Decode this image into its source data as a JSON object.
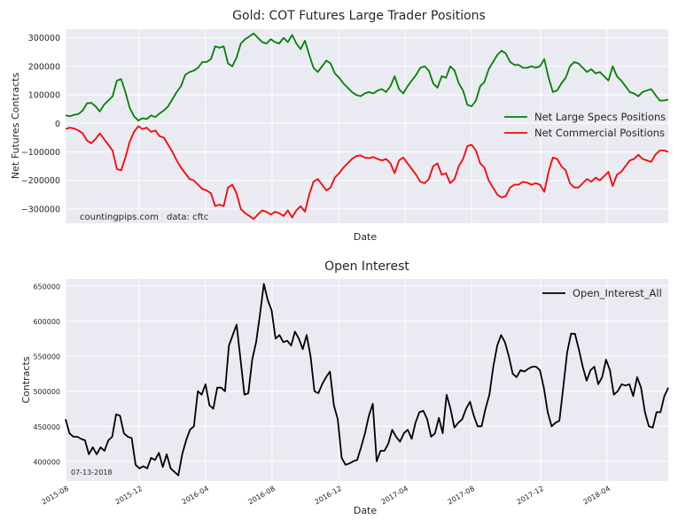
{
  "chart_data": [
    {
      "type": "line",
      "title": "Gold: COT Futures Large Trader Positions",
      "xlabel": "Date",
      "ylabel": "Net Futures Contracts",
      "ylim": [
        -350000,
        330000
      ],
      "yticks": [
        -300000,
        -200000,
        -100000,
        0,
        100000,
        200000,
        300000
      ],
      "ytick_labels": [
        "−300000",
        "−200000",
        "−100000",
        "0",
        "100000",
        "200000",
        "300000"
      ],
      "grid": true,
      "legend_position": "right",
      "annotations": [
        "countingpips.com",
        "data: cftc"
      ],
      "series": [
        {
          "name": "Net Large Specs Positions",
          "color": "#008000",
          "values": [
            28000,
            25000,
            30000,
            33000,
            45000,
            70000,
            72000,
            60000,
            42000,
            65000,
            80000,
            95000,
            150000,
            155000,
            110000,
            55000,
            25000,
            10000,
            18000,
            15000,
            28000,
            22000,
            35000,
            45000,
            60000,
            85000,
            110000,
            130000,
            170000,
            180000,
            185000,
            195000,
            215000,
            215000,
            225000,
            270000,
            265000,
            270000,
            210000,
            200000,
            230000,
            280000,
            295000,
            305000,
            315000,
            300000,
            285000,
            280000,
            295000,
            285000,
            280000,
            300000,
            285000,
            310000,
            280000,
            260000,
            290000,
            240000,
            195000,
            180000,
            200000,
            220000,
            210000,
            175000,
            160000,
            140000,
            125000,
            110000,
            100000,
            95000,
            105000,
            110000,
            105000,
            115000,
            120000,
            110000,
            130000,
            165000,
            120000,
            105000,
            130000,
            150000,
            170000,
            195000,
            200000,
            185000,
            140000,
            125000,
            165000,
            160000,
            200000,
            185000,
            140000,
            115000,
            65000,
            60000,
            80000,
            130000,
            145000,
            190000,
            215000,
            240000,
            255000,
            245000,
            215000,
            205000,
            205000,
            195000,
            195000,
            200000,
            195000,
            200000,
            225000,
            160000,
            110000,
            115000,
            140000,
            160000,
            200000,
            215000,
            210000,
            195000,
            180000,
            190000,
            175000,
            180000,
            165000,
            150000,
            200000,
            165000,
            150000,
            130000,
            110000,
            105000,
            95000,
            110000,
            115000,
            120000,
            100000,
            80000,
            80000,
            83000
          ]
        },
        {
          "name": "Net Commercial Positions",
          "color": "#ff0000",
          "values": [
            -20000,
            -15000,
            -18000,
            -25000,
            -35000,
            -60000,
            -70000,
            -55000,
            -35000,
            -55000,
            -75000,
            -95000,
            -160000,
            -165000,
            -120000,
            -65000,
            -30000,
            -10000,
            -20000,
            -15000,
            -30000,
            -25000,
            -45000,
            -50000,
            -75000,
            -100000,
            -130000,
            -155000,
            -175000,
            -195000,
            -200000,
            -215000,
            -230000,
            -235000,
            -245000,
            -290000,
            -285000,
            -290000,
            -225000,
            -215000,
            -245000,
            -300000,
            -315000,
            -325000,
            -335000,
            -320000,
            -305000,
            -310000,
            -320000,
            -310000,
            -315000,
            -325000,
            -305000,
            -330000,
            -305000,
            -290000,
            -310000,
            -250000,
            -205000,
            -195000,
            -215000,
            -235000,
            -225000,
            -190000,
            -175000,
            -155000,
            -140000,
            -125000,
            -115000,
            -112000,
            -120000,
            -122000,
            -118000,
            -125000,
            -130000,
            -125000,
            -140000,
            -175000,
            -130000,
            -120000,
            -140000,
            -160000,
            -180000,
            -205000,
            -210000,
            -195000,
            -150000,
            -140000,
            -180000,
            -175000,
            -210000,
            -195000,
            -150000,
            -125000,
            -80000,
            -75000,
            -95000,
            -140000,
            -155000,
            -200000,
            -225000,
            -250000,
            -260000,
            -255000,
            -225000,
            -215000,
            -215000,
            -205000,
            -208000,
            -215000,
            -210000,
            -215000,
            -240000,
            -170000,
            -120000,
            -125000,
            -150000,
            -165000,
            -210000,
            -225000,
            -225000,
            -210000,
            -195000,
            -205000,
            -190000,
            -200000,
            -185000,
            -170000,
            -220000,
            -180000,
            -170000,
            -150000,
            -130000,
            -125000,
            -110000,
            -125000,
            -130000,
            -135000,
            -110000,
            -95000,
            -95000,
            -100000
          ]
        }
      ]
    },
    {
      "type": "line",
      "title": "Open Interest",
      "xlabel": "Date",
      "ylabel": "Contracts",
      "ylim": [
        372000,
        660000
      ],
      "yticks": [
        400000,
        450000,
        500000,
        550000,
        600000,
        650000
      ],
      "ytick_labels": [
        "400000",
        "450000",
        "500000",
        "550000",
        "600000",
        "650000"
      ],
      "x_tick_labels": [
        "2015-08",
        "2015-12",
        "2016-04",
        "2016-08",
        "2016-12",
        "2017-04",
        "2017-08",
        "2017-12",
        "2018-04"
      ],
      "grid": true,
      "legend_position": "top-right",
      "annotations": [
        "07-13-2018"
      ],
      "series": [
        {
          "name": "Open_Interest_All",
          "color": "#000000",
          "values": [
            460000,
            440000,
            435000,
            435000,
            432000,
            430000,
            410000,
            420000,
            410000,
            420000,
            415000,
            430000,
            435000,
            467000,
            465000,
            440000,
            435000,
            433000,
            395000,
            390000,
            393000,
            390000,
            405000,
            402000,
            412000,
            392000,
            410000,
            390000,
            385000,
            380000,
            410000,
            430000,
            445000,
            450000,
            500000,
            495000,
            510000,
            480000,
            475000,
            505000,
            505000,
            500000,
            565000,
            580000,
            595000,
            545000,
            495000,
            497000,
            545000,
            570000,
            610000,
            653000,
            630000,
            615000,
            575000,
            580000,
            570000,
            572000,
            565000,
            585000,
            575000,
            560000,
            580000,
            550000,
            500000,
            497000,
            510000,
            520000,
            528000,
            480000,
            460000,
            405000,
            395000,
            397000,
            400000,
            402000,
            420000,
            440000,
            465000,
            482000,
            400000,
            415000,
            415000,
            425000,
            445000,
            435000,
            428000,
            440000,
            445000,
            432000,
            455000,
            470000,
            472000,
            460000,
            435000,
            440000,
            462000,
            440000,
            495000,
            475000,
            448000,
            455000,
            460000,
            475000,
            485000,
            465000,
            450000,
            450000,
            475000,
            495000,
            535000,
            565000,
            580000,
            570000,
            550000,
            525000,
            520000,
            530000,
            528000,
            532000,
            535000,
            535000,
            530000,
            505000,
            470000,
            450000,
            455000,
            458000,
            505000,
            555000,
            582000,
            582000,
            560000,
            535000,
            515000,
            530000,
            535000,
            510000,
            520000,
            545000,
            530000,
            495000,
            500000,
            510000,
            508000,
            510000,
            493000,
            520000,
            505000,
            470000,
            450000,
            448000,
            470000,
            470000,
            493000,
            505000
          ]
        }
      ]
    }
  ]
}
